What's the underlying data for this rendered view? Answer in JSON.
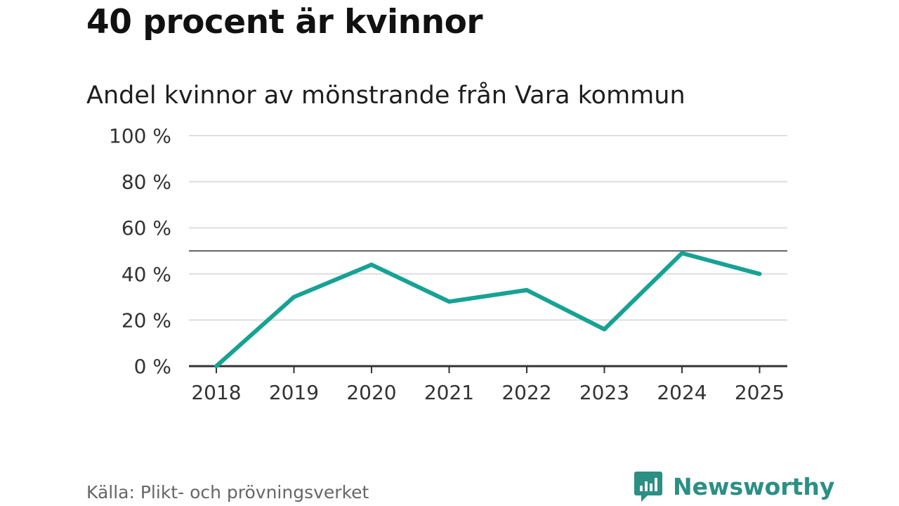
{
  "header": {
    "headline": "40 procent är kvinnor"
  },
  "footer": {
    "source": "Källa: Plikt- och prövningsverket",
    "brand_name": "Newsworthy",
    "brand_color": "#2b8f84"
  },
  "chart_data": {
    "type": "line",
    "title": "Andel kvinnor av mönstrande från Vara kommun",
    "xlabel": "",
    "ylabel": "",
    "categories": [
      "2018",
      "2019",
      "2020",
      "2021",
      "2022",
      "2023",
      "2024",
      "2025"
    ],
    "series": [
      {
        "name": "Andel kvinnor",
        "color": "#17a294",
        "values": [
          0,
          30,
          44,
          28,
          33,
          16,
          49,
          40
        ]
      }
    ],
    "ylim": [
      0,
      100
    ],
    "yticks": [
      0,
      20,
      40,
      60,
      80,
      100
    ],
    "ytick_labels": [
      "0 %",
      "20 %",
      "40 %",
      "60 %",
      "80 %",
      "100 %"
    ],
    "reference_line": 50,
    "grid": true,
    "legend": "none"
  }
}
